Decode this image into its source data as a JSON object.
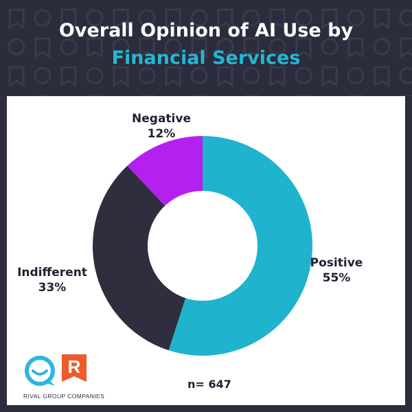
{
  "header": {
    "title_line1": "Overall Opinion of AI Use by",
    "title_line2": "Financial Services"
  },
  "chart_data": {
    "type": "pie",
    "style": "donut",
    "title": "Overall Opinion of AI Use by Financial Services",
    "categories": [
      "Positive",
      "Indifferent",
      "Negative"
    ],
    "values": [
      55,
      33,
      12
    ],
    "value_labels": [
      "55%",
      "33%",
      "12%"
    ],
    "colors": [
      "#1fb3cd",
      "#2e2e3f",
      "#b520f0"
    ],
    "note": "n= 647"
  },
  "labels": {
    "negative_name": "Negative",
    "negative_value": "12%",
    "positive_name": "Positive",
    "positive_value": "55%",
    "indifferent_name": "Indifferent",
    "indifferent_value": "33%",
    "sample": "n= 647"
  },
  "logo": {
    "company": "RIVAL GROUP COMPANIES",
    "mark_letter": "R"
  },
  "colors": {
    "header_bg": "#2b2c3c",
    "accent": "#23b8d0",
    "logo_blue": "#2ab7e0",
    "logo_orange": "#ef5a2a"
  }
}
